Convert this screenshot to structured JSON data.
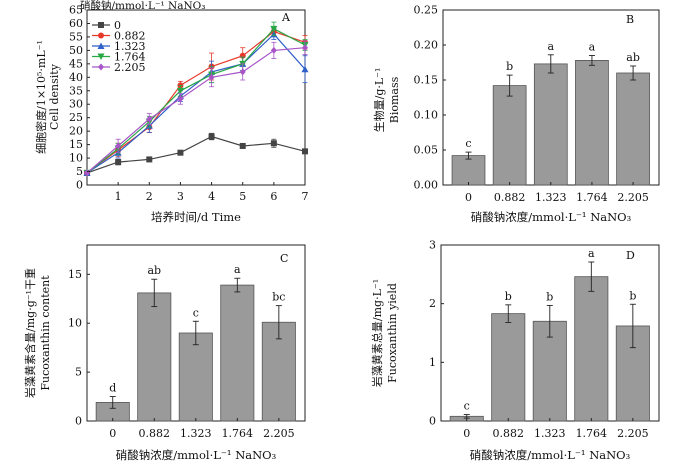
{
  "chart_data": [
    {
      "panel": "A",
      "type": "line",
      "xlabel": "培养时间/d Time",
      "ylabel_cn": "细胞密度/1×10⁵·mL⁻¹",
      "ylabel_en": "Cell density",
      "legend_title": "硝酸钠/mmol·L⁻¹ NaNO₃",
      "legend_position": "top-left",
      "x": [
        0,
        1,
        2,
        3,
        4,
        5,
        6,
        7
      ],
      "xlim": [
        0,
        7
      ],
      "ylim": [
        0,
        65
      ],
      "yticks": [
        0,
        5,
        10,
        15,
        20,
        25,
        30,
        35,
        40,
        45,
        50,
        55,
        60,
        65
      ],
      "xticks": [
        1,
        2,
        3,
        4,
        5,
        6,
        7
      ],
      "series": [
        {
          "name": "0",
          "color": "#444444",
          "marker": "square",
          "values": [
            4.5,
            8.5,
            9.5,
            12,
            18,
            14.5,
            15.5,
            12.5
          ],
          "err": [
            0.5,
            1.0,
            0.8,
            0.8,
            1.2,
            0.8,
            1.5,
            0.8
          ]
        },
        {
          "name": "0.882",
          "color": "#e8382a",
          "marker": "circle",
          "values": [
            4.5,
            13,
            21.5,
            37,
            44,
            48,
            57,
            53
          ],
          "err": [
            0.5,
            2.5,
            2.0,
            1.5,
            5.0,
            3.0,
            1.5,
            2.5
          ]
        },
        {
          "name": "1.323",
          "color": "#2f5fc8",
          "marker": "triangle-up",
          "values": [
            4.5,
            12,
            22,
            33,
            42,
            45,
            56,
            43
          ],
          "err": [
            0.5,
            2.0,
            2.5,
            2.0,
            4.0,
            2.5,
            2.0,
            5.0
          ]
        },
        {
          "name": "1.764",
          "color": "#28a745",
          "marker": "triangle-down",
          "values": [
            4.5,
            13.5,
            23.5,
            35,
            41,
            45,
            58,
            52
          ],
          "err": [
            0.5,
            2.0,
            2.0,
            2.0,
            3.0,
            2.5,
            2.5,
            2.0
          ]
        },
        {
          "name": "2.205",
          "color": "#a855c8",
          "marker": "diamond",
          "values": [
            4.5,
            14.5,
            24.5,
            32,
            40,
            42,
            50,
            51
          ],
          "err": [
            0.5,
            2.5,
            2.0,
            2.0,
            3.5,
            3.0,
            3.0,
            2.5
          ]
        }
      ]
    },
    {
      "panel": "B",
      "type": "bar",
      "xlabel": "硝酸钠浓度/mmol·L⁻¹ NaNO₃",
      "ylabel_cn": "生物量/g·L⁻¹",
      "ylabel_en": "Biomass",
      "categories": [
        "0",
        "0.882",
        "1.323",
        "1.764",
        "2.205"
      ],
      "values": [
        0.042,
        0.142,
        0.173,
        0.178,
        0.16
      ],
      "err": [
        0.005,
        0.015,
        0.013,
        0.007,
        0.01
      ],
      "letters": [
        "c",
        "b",
        "a",
        "a",
        "ab"
      ],
      "ylim": [
        0,
        0.25
      ],
      "yticks": [
        "0.00",
        "0.05",
        "0.10",
        "0.15",
        "0.20",
        "0.25"
      ]
    },
    {
      "panel": "C",
      "type": "bar",
      "xlabel": "硝酸钠浓度/mmol·L⁻¹ NaNO₃",
      "ylabel_cn": "岩藻黄素含量/mg·g⁻¹干重",
      "ylabel_en": "Fucoxanthin content",
      "categories": [
        "0",
        "0.882",
        "1.323",
        "1.764",
        "2.205"
      ],
      "values": [
        1.9,
        13.1,
        9.0,
        13.9,
        10.1
      ],
      "err": [
        0.6,
        1.4,
        1.2,
        0.7,
        1.7
      ],
      "letters": [
        "d",
        "ab",
        "c",
        "a",
        "bc"
      ],
      "ylim": [
        0,
        18
      ],
      "yticks": [
        "0",
        "5",
        "10",
        "15"
      ]
    },
    {
      "panel": "D",
      "type": "bar",
      "xlabel": "硝酸钠浓度/mmol·L⁻¹ NaNO₃",
      "ylabel_cn": "岩藻黄素总量/mg·L⁻¹",
      "ylabel_en": "Fucoxanthin yield",
      "categories": [
        "0",
        "0.882",
        "1.323",
        "1.764",
        "2.205"
      ],
      "values": [
        0.08,
        1.83,
        1.7,
        2.46,
        1.62
      ],
      "err": [
        0.03,
        0.15,
        0.27,
        0.25,
        0.37
      ],
      "letters": [
        "c",
        "b",
        "b",
        "a",
        "b"
      ],
      "ylim": [
        0,
        3
      ],
      "yticks": [
        "0",
        "1",
        "2",
        "3"
      ]
    }
  ]
}
